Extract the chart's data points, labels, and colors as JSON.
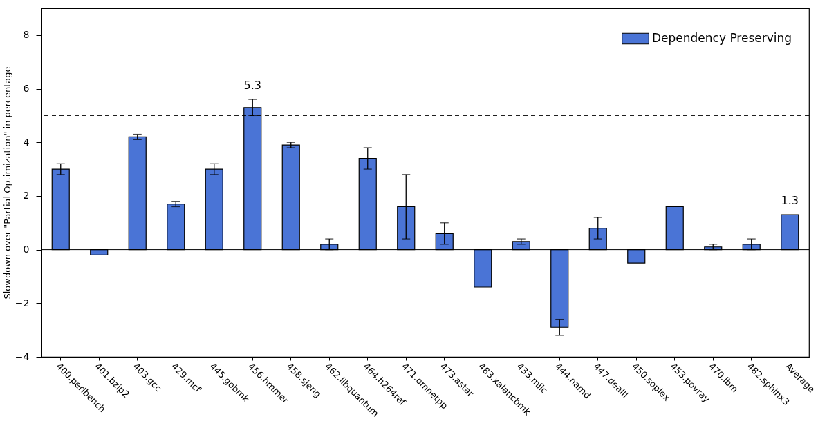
{
  "chart_data": {
    "type": "bar",
    "ylabel": "Slowdown over \"Partial Optimization\" in percentage",
    "categories": [
      "400.perlbench",
      "401.bzip2",
      "403.gcc",
      "429.mcf",
      "445.gobmk",
      "456.hmmer",
      "458.sjeng",
      "462.libquantum",
      "464.h264ref",
      "471.omnetpp",
      "473.astar",
      "483.xalancbmk",
      "433.milc",
      "444.namd",
      "447.dealII",
      "450.soplex",
      "453.povray",
      "470.lbm",
      "482.sphinx3",
      "Average"
    ],
    "series": [
      {
        "name": "Dependency Preserving",
        "color": "#4a74d6",
        "values": [
          3.0,
          -0.2,
          4.2,
          1.7,
          3.0,
          5.3,
          3.9,
          0.2,
          3.4,
          1.6,
          0.6,
          -1.4,
          0.3,
          -2.9,
          0.8,
          -0.5,
          1.6,
          0.1,
          0.2,
          1.3
        ],
        "errors": [
          0.2,
          null,
          0.1,
          0.1,
          0.2,
          0.3,
          0.1,
          0.2,
          0.4,
          1.2,
          0.4,
          null,
          0.1,
          0.3,
          0.4,
          null,
          null,
          0.1,
          0.2,
          null
        ],
        "value_labels": [
          null,
          null,
          null,
          null,
          null,
          "5.3",
          null,
          null,
          null,
          null,
          null,
          null,
          null,
          null,
          null,
          null,
          null,
          null,
          null,
          "1.3"
        ]
      }
    ],
    "ylim": [
      -4,
      9
    ],
    "yticks": [
      -4,
      -2,
      0,
      2,
      4,
      6,
      8
    ],
    "legend": "top right",
    "ref_lines": [
      {
        "axis": "y",
        "value": 5,
        "line_style": "dashed"
      }
    ]
  }
}
